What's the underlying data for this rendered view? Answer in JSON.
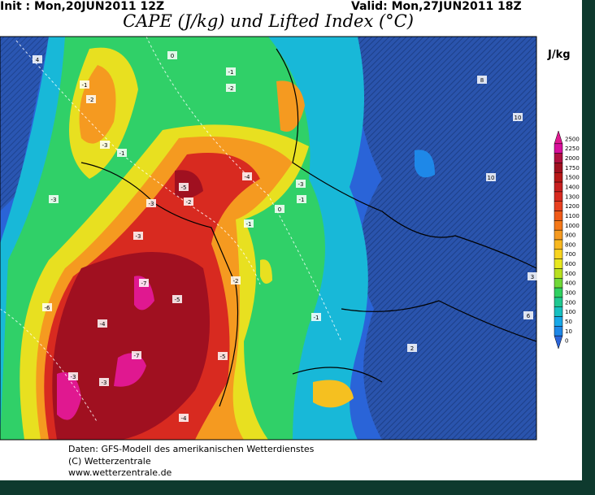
{
  "header": {
    "init": "Init : Mon,20JUN2011 12Z",
    "valid": "Valid: Mon,27JUN2011 18Z",
    "title": "CAPE (J/kg) und Lifted Index (°C)"
  },
  "colorbar": {
    "unit": "J/kg",
    "levels": [
      {
        "label": "2500",
        "color": "#e01890"
      },
      {
        "label": "2250",
        "color": "#d8109c"
      },
      {
        "label": "2000",
        "color": "#b01040"
      },
      {
        "label": "1750",
        "color": "#a01020"
      },
      {
        "label": "1500",
        "color": "#b81818"
      },
      {
        "label": "1400",
        "color": "#c82020"
      },
      {
        "label": "1300",
        "color": "#d82a20"
      },
      {
        "label": "1200",
        "color": "#e84020"
      },
      {
        "label": "1100",
        "color": "#f05a18"
      },
      {
        "label": "1000",
        "color": "#f57818"
      },
      {
        "label": "900",
        "color": "#f59a20"
      },
      {
        "label": "800",
        "color": "#f8b820"
      },
      {
        "label": "700",
        "color": "#f8d420"
      },
      {
        "label": "600",
        "color": "#e8e820"
      },
      {
        "label": "500",
        "color": "#b8e020"
      },
      {
        "label": "400",
        "color": "#70d838"
      },
      {
        "label": "300",
        "color": "#30d060"
      },
      {
        "label": "200",
        "color": "#20c890"
      },
      {
        "label": "100",
        "color": "#18c0c0"
      },
      {
        "label": "50",
        "color": "#18a8e8"
      },
      {
        "label": "10",
        "color": "#1e88e8"
      },
      {
        "label": "0",
        "color": "#2a64d8"
      }
    ]
  },
  "contour_labels": [
    "4",
    "-1",
    "-2",
    "0",
    "-1",
    "-2",
    "-3",
    "-1",
    "-3",
    "-2",
    "-5",
    "-4",
    "-3",
    "-1",
    "-3",
    "-7",
    "-6",
    "-3",
    "-5",
    "-4",
    "-7",
    "-5",
    "-2",
    "-1",
    "-4",
    "-3",
    "-3",
    "-1",
    "0",
    "2",
    "8",
    "10",
    "10",
    "3",
    "6"
  ],
  "footer": [
    "Daten: GFS-Modell des amerikanischen Wetterdienstes",
    "(C) Wetterzentrale",
    "www.wetterzentrale.de"
  ]
}
